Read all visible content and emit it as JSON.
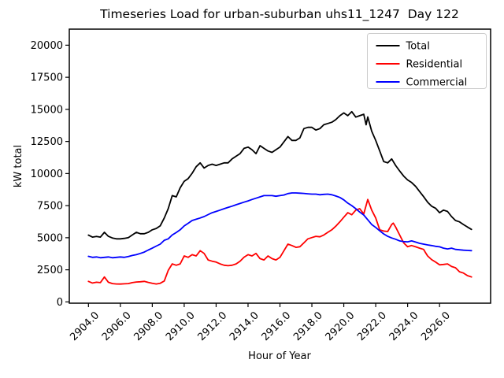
{
  "figure": {
    "background": "#ffffff",
    "frame_color": "#000000",
    "legend_border_color": "#cccccc"
  },
  "chart_data": {
    "type": "line",
    "title": "Timeseries Load for urban-suburban uhs11_1247  Day 122",
    "xlabel": "Hour of Year",
    "ylabel": "kW total",
    "xlim": [
      2902.8,
      2929.2
    ],
    "ylim": [
      -100,
      21250
    ],
    "grid": false,
    "x_tick_rotation": 45,
    "x_tick_values": [
      2904,
      2906,
      2908,
      2910,
      2912,
      2914,
      2916,
      2918,
      2920,
      2922,
      2924,
      2926
    ],
    "x_tick_labels": [
      "2904.0",
      "2906.0",
      "2908.0",
      "2910.0",
      "2912.0",
      "2914.0",
      "2916.0",
      "2918.0",
      "2920.0",
      "2922.0",
      "2924.0",
      "2926.0"
    ],
    "y_tick_values": [
      0,
      2500,
      5000,
      7500,
      10000,
      12500,
      15000,
      17500,
      20000
    ],
    "y_tick_labels": [
      "0",
      "2500",
      "5000",
      "7500",
      "10000",
      "12500",
      "15000",
      "17500",
      "20000"
    ],
    "legend": {
      "position": "upper right",
      "entries": [
        "Total",
        "Residential",
        "Commercial"
      ]
    },
    "series": [
      {
        "name": "Total",
        "color": "#000000",
        "points": [
          [
            2904,
            5200
          ],
          [
            2904.25,
            5050
          ],
          [
            2904.5,
            5100
          ],
          [
            2904.75,
            5050
          ],
          [
            2905,
            5420
          ],
          [
            2905.25,
            5110
          ],
          [
            2905.5,
            4980
          ],
          [
            2905.75,
            4910
          ],
          [
            2906,
            4910
          ],
          [
            2906.25,
            4950
          ],
          [
            2906.5,
            5010
          ],
          [
            2906.75,
            5210
          ],
          [
            2907,
            5420
          ],
          [
            2907.25,
            5310
          ],
          [
            2907.5,
            5310
          ],
          [
            2907.75,
            5420
          ],
          [
            2908,
            5620
          ],
          [
            2908.25,
            5720
          ],
          [
            2908.5,
            5930
          ],
          [
            2908.75,
            6540
          ],
          [
            2909,
            7260
          ],
          [
            2909.25,
            8280
          ],
          [
            2909.5,
            8180
          ],
          [
            2909.75,
            8890
          ],
          [
            2910,
            9400
          ],
          [
            2910.25,
            9610
          ],
          [
            2910.5,
            10020
          ],
          [
            2910.75,
            10530
          ],
          [
            2911,
            10830
          ],
          [
            2911.25,
            10430
          ],
          [
            2911.5,
            10630
          ],
          [
            2911.75,
            10730
          ],
          [
            2912,
            10630
          ],
          [
            2912.25,
            10730
          ],
          [
            2912.5,
            10830
          ],
          [
            2912.75,
            10830
          ],
          [
            2913,
            11140
          ],
          [
            2913.25,
            11350
          ],
          [
            2913.5,
            11550
          ],
          [
            2913.75,
            11960
          ],
          [
            2914,
            12060
          ],
          [
            2914.25,
            11860
          ],
          [
            2914.5,
            11550
          ],
          [
            2914.75,
            12170
          ],
          [
            2915,
            11960
          ],
          [
            2915.25,
            11760
          ],
          [
            2915.5,
            11650
          ],
          [
            2915.75,
            11860
          ],
          [
            2916,
            12060
          ],
          [
            2916.25,
            12470
          ],
          [
            2916.5,
            12880
          ],
          [
            2916.75,
            12580
          ],
          [
            2917,
            12580
          ],
          [
            2917.25,
            12780
          ],
          [
            2917.5,
            13500
          ],
          [
            2917.75,
            13600
          ],
          [
            2918,
            13600
          ],
          [
            2918.25,
            13390
          ],
          [
            2918.5,
            13500
          ],
          [
            2918.75,
            13800
          ],
          [
            2919,
            13900
          ],
          [
            2919.25,
            14000
          ],
          [
            2919.5,
            14200
          ],
          [
            2919.75,
            14500
          ],
          [
            2920,
            14720
          ],
          [
            2920.25,
            14510
          ],
          [
            2920.5,
            14820
          ],
          [
            2920.75,
            14400
          ],
          [
            2921,
            14510
          ],
          [
            2921.25,
            14620
          ],
          [
            2921.4,
            13800
          ],
          [
            2921.5,
            14410
          ],
          [
            2921.75,
            13300
          ],
          [
            2922,
            12580
          ],
          [
            2922.25,
            11760
          ],
          [
            2922.5,
            10940
          ],
          [
            2922.75,
            10830
          ],
          [
            2923,
            11140
          ],
          [
            2923.25,
            10630
          ],
          [
            2923.5,
            10200
          ],
          [
            2923.75,
            9800
          ],
          [
            2924,
            9500
          ],
          [
            2924.25,
            9300
          ],
          [
            2924.5,
            9000
          ],
          [
            2924.75,
            8600
          ],
          [
            2925,
            8200
          ],
          [
            2925.25,
            7770
          ],
          [
            2925.5,
            7460
          ],
          [
            2925.75,
            7300
          ],
          [
            2926,
            6950
          ],
          [
            2926.25,
            7150
          ],
          [
            2926.5,
            7050
          ],
          [
            2926.75,
            6650
          ],
          [
            2927,
            6340
          ],
          [
            2927.25,
            6240
          ],
          [
            2927.5,
            6030
          ],
          [
            2927.75,
            5830
          ],
          [
            2928,
            5650
          ]
        ]
      },
      {
        "name": "Residential",
        "color": "#ff0000",
        "points": [
          [
            2904,
            1600
          ],
          [
            2904.25,
            1470
          ],
          [
            2904.5,
            1530
          ],
          [
            2904.75,
            1500
          ],
          [
            2905,
            1940
          ],
          [
            2905.25,
            1530
          ],
          [
            2905.5,
            1430
          ],
          [
            2905.75,
            1400
          ],
          [
            2906,
            1390
          ],
          [
            2906.25,
            1410
          ],
          [
            2906.5,
            1430
          ],
          [
            2906.75,
            1500
          ],
          [
            2907,
            1550
          ],
          [
            2907.25,
            1570
          ],
          [
            2907.5,
            1600
          ],
          [
            2907.75,
            1520
          ],
          [
            2908,
            1450
          ],
          [
            2908.25,
            1400
          ],
          [
            2908.5,
            1450
          ],
          [
            2908.75,
            1630
          ],
          [
            2909,
            2450
          ],
          [
            2909.25,
            2960
          ],
          [
            2909.5,
            2860
          ],
          [
            2909.75,
            2960
          ],
          [
            2910,
            3580
          ],
          [
            2910.25,
            3470
          ],
          [
            2910.5,
            3680
          ],
          [
            2910.75,
            3580
          ],
          [
            2911,
            3990
          ],
          [
            2911.25,
            3780
          ],
          [
            2911.5,
            3270
          ],
          [
            2911.75,
            3170
          ],
          [
            2912,
            3100
          ],
          [
            2912.25,
            2960
          ],
          [
            2912.5,
            2860
          ],
          [
            2912.75,
            2820
          ],
          [
            2913,
            2860
          ],
          [
            2913.25,
            2960
          ],
          [
            2913.5,
            3170
          ],
          [
            2913.75,
            3480
          ],
          [
            2914,
            3680
          ],
          [
            2914.25,
            3580
          ],
          [
            2914.5,
            3780
          ],
          [
            2914.75,
            3370
          ],
          [
            2915,
            3270
          ],
          [
            2915.25,
            3580
          ],
          [
            2915.5,
            3370
          ],
          [
            2915.75,
            3270
          ],
          [
            2916,
            3470
          ],
          [
            2916.25,
            3990
          ],
          [
            2916.5,
            4500
          ],
          [
            2916.75,
            4390
          ],
          [
            2917,
            4250
          ],
          [
            2917.25,
            4300
          ],
          [
            2917.5,
            4600
          ],
          [
            2917.75,
            4910
          ],
          [
            2918,
            5010
          ],
          [
            2918.25,
            5110
          ],
          [
            2918.5,
            5070
          ],
          [
            2918.75,
            5210
          ],
          [
            2919,
            5420
          ],
          [
            2919.25,
            5620
          ],
          [
            2919.5,
            5900
          ],
          [
            2919.75,
            6230
          ],
          [
            2920,
            6600
          ],
          [
            2920.25,
            6950
          ],
          [
            2920.5,
            6790
          ],
          [
            2920.75,
            7150
          ],
          [
            2921,
            7260
          ],
          [
            2921.25,
            6850
          ],
          [
            2921.5,
            7980
          ],
          [
            2921.75,
            7150
          ],
          [
            2922,
            6540
          ],
          [
            2922.25,
            5620
          ],
          [
            2922.5,
            5520
          ],
          [
            2922.75,
            5480
          ],
          [
            2923,
            6030
          ],
          [
            2923.1,
            6140
          ],
          [
            2923.25,
            5830
          ],
          [
            2923.5,
            5210
          ],
          [
            2923.75,
            4600
          ],
          [
            2924,
            4300
          ],
          [
            2924.25,
            4390
          ],
          [
            2924.5,
            4290
          ],
          [
            2924.75,
            4190
          ],
          [
            2925,
            4090
          ],
          [
            2925.1,
            3880
          ],
          [
            2925.25,
            3580
          ],
          [
            2925.5,
            3300
          ],
          [
            2925.75,
            3100
          ],
          [
            2926,
            2890
          ],
          [
            2926.25,
            2920
          ],
          [
            2926.5,
            2960
          ],
          [
            2926.75,
            2760
          ],
          [
            2927,
            2660
          ],
          [
            2927.25,
            2350
          ],
          [
            2927.5,
            2250
          ],
          [
            2927.75,
            2050
          ],
          [
            2928,
            1940
          ]
        ]
      },
      {
        "name": "Commercial",
        "color": "#0000ff",
        "points": [
          [
            2904,
            3550
          ],
          [
            2904.25,
            3470
          ],
          [
            2904.5,
            3500
          ],
          [
            2904.75,
            3440
          ],
          [
            2905,
            3470
          ],
          [
            2905.25,
            3500
          ],
          [
            2905.5,
            3440
          ],
          [
            2905.75,
            3470
          ],
          [
            2906,
            3500
          ],
          [
            2906.25,
            3470
          ],
          [
            2906.5,
            3530
          ],
          [
            2906.75,
            3620
          ],
          [
            2907,
            3680
          ],
          [
            2907.25,
            3780
          ],
          [
            2907.5,
            3880
          ],
          [
            2907.75,
            4040
          ],
          [
            2908,
            4190
          ],
          [
            2908.25,
            4350
          ],
          [
            2908.5,
            4500
          ],
          [
            2908.75,
            4800
          ],
          [
            2909,
            4910
          ],
          [
            2909.25,
            5210
          ],
          [
            2909.5,
            5410
          ],
          [
            2909.75,
            5620
          ],
          [
            2910,
            5920
          ],
          [
            2910.25,
            6130
          ],
          [
            2910.5,
            6340
          ],
          [
            2910.75,
            6440
          ],
          [
            2911,
            6540
          ],
          [
            2911.25,
            6650
          ],
          [
            2911.5,
            6800
          ],
          [
            2911.75,
            6950
          ],
          [
            2912,
            7050
          ],
          [
            2912.25,
            7150
          ],
          [
            2912.5,
            7260
          ],
          [
            2912.75,
            7360
          ],
          [
            2913,
            7460
          ],
          [
            2913.25,
            7570
          ],
          [
            2913.5,
            7670
          ],
          [
            2913.75,
            7770
          ],
          [
            2914,
            7870
          ],
          [
            2914.25,
            7980
          ],
          [
            2914.5,
            8080
          ],
          [
            2914.75,
            8180
          ],
          [
            2915,
            8280
          ],
          [
            2915.25,
            8280
          ],
          [
            2915.5,
            8280
          ],
          [
            2915.75,
            8230
          ],
          [
            2916,
            8280
          ],
          [
            2916.25,
            8330
          ],
          [
            2916.5,
            8440
          ],
          [
            2916.75,
            8490
          ],
          [
            2917,
            8490
          ],
          [
            2917.25,
            8470
          ],
          [
            2917.5,
            8450
          ],
          [
            2917.75,
            8420
          ],
          [
            2918,
            8400
          ],
          [
            2918.25,
            8400
          ],
          [
            2918.5,
            8350
          ],
          [
            2918.75,
            8380
          ],
          [
            2919,
            8400
          ],
          [
            2919.25,
            8350
          ],
          [
            2919.5,
            8250
          ],
          [
            2919.75,
            8140
          ],
          [
            2920,
            7950
          ],
          [
            2920.25,
            7700
          ],
          [
            2920.5,
            7500
          ],
          [
            2920.75,
            7260
          ],
          [
            2921,
            7000
          ],
          [
            2921.25,
            6770
          ],
          [
            2921.5,
            6400
          ],
          [
            2921.75,
            6030
          ],
          [
            2922,
            5800
          ],
          [
            2922.25,
            5540
          ],
          [
            2922.5,
            5300
          ],
          [
            2922.75,
            5110
          ],
          [
            2923,
            4980
          ],
          [
            2923.25,
            4880
          ],
          [
            2923.5,
            4750
          ],
          [
            2923.75,
            4700
          ],
          [
            2924,
            4680
          ],
          [
            2924.25,
            4750
          ],
          [
            2924.5,
            4660
          ],
          [
            2924.75,
            4560
          ],
          [
            2925,
            4500
          ],
          [
            2925.25,
            4440
          ],
          [
            2925.5,
            4390
          ],
          [
            2925.75,
            4330
          ],
          [
            2926,
            4290
          ],
          [
            2926.25,
            4190
          ],
          [
            2926.5,
            4130
          ],
          [
            2926.75,
            4190
          ],
          [
            2927,
            4090
          ],
          [
            2927.25,
            4060
          ],
          [
            2927.5,
            4030
          ],
          [
            2927.75,
            4010
          ],
          [
            2928,
            3990
          ]
        ]
      }
    ]
  }
}
